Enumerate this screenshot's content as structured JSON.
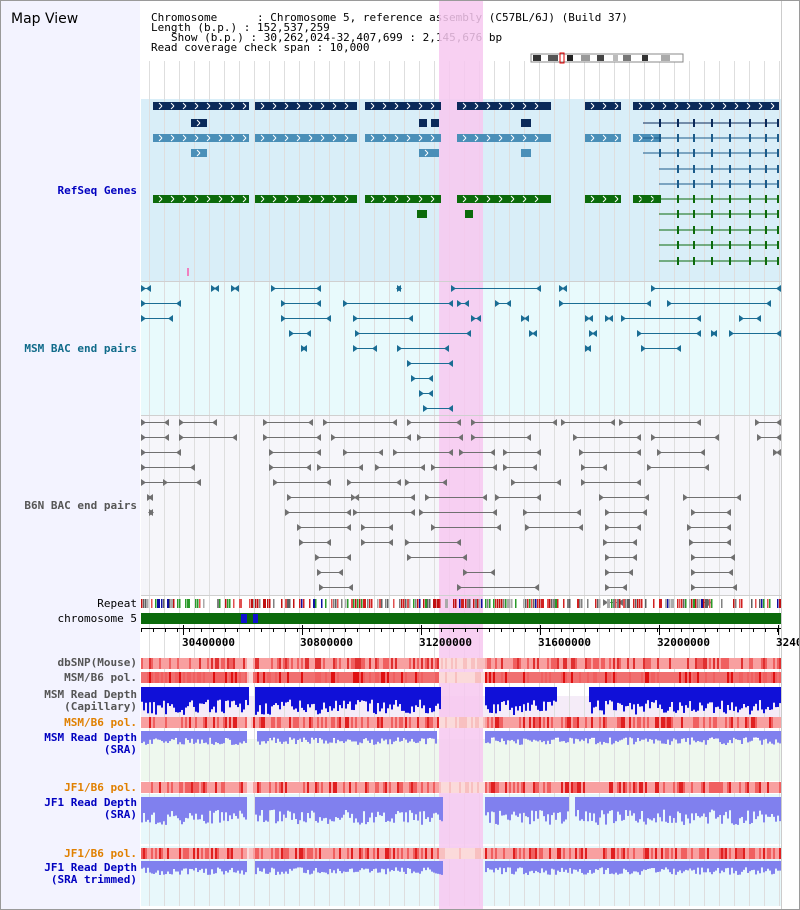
{
  "title": "Map View",
  "info": {
    "chromosome": "Chromosome      : Chromosome 5, reference assembly (C57BL/6J) (Build 37)",
    "length": "Length (b.p.) : 152,537,259",
    "show": "Show (b.p.) : 30,262,024-32,407,699 : 2,145,676 bp",
    "coverage": "Read coverage check span : 10,000"
  },
  "tracks": {
    "refseq": {
      "label": "RefSeq Genes",
      "color": "#0000c0"
    },
    "msm_bac": {
      "label": "MSM BAC end pairs",
      "color": "#106b8a"
    },
    "b6n_bac": {
      "label": "B6N BAC end pairs",
      "color": "#555555"
    },
    "repeat": {
      "label": "Repeat",
      "color": "#000000"
    },
    "chromosome": {
      "label": "chromosome 5",
      "color": "#000000"
    },
    "dbsnp": {
      "label": "dbSNP(Mouse)",
      "color": "#555555"
    },
    "msm_b6_pol": {
      "label": "MSM/B6 pol.",
      "color": "#555555"
    },
    "msm_read_cap": {
      "label": "MSM Read Depth",
      "sub": "(Capillary)",
      "color": "#555555"
    },
    "msm_b6_pol2": {
      "label": "MSM/B6 pol.",
      "color": "#e08000"
    },
    "msm_read_sra": {
      "label": "MSM Read Depth",
      "sub": "(SRA)",
      "color": "#0000c0"
    },
    "jf1_pol": {
      "label": "JF1/B6 pol.",
      "color": "#e08000"
    },
    "jf1_read": {
      "label": "JF1 Read Depth",
      "sub": "(SRA)",
      "color": "#0000c0"
    },
    "jf1_pol2": {
      "label": "JF1/B6 pol.",
      "color": "#e08000"
    },
    "jf1_read_trim": {
      "label": "JF1 Read Depth",
      "sub": "(SRA trimmed)",
      "color": "#0000c0"
    }
  },
  "axis": {
    "ticks": [
      "30400000",
      "30800000",
      "31200000",
      "31600000",
      "32000000",
      "3240"
    ]
  },
  "colors": {
    "refseq_dark": "#0b2a5a",
    "refseq_light": "#4a8fb8",
    "refseq_green": "#0b6b0b",
    "highlight": "#f7c8f0",
    "msm_line": "#1a6d94",
    "b6n_line": "#707070",
    "chrom_green": "#0b6a0b",
    "depth_blue": "#1010d8",
    "depth_light": "#8080ee"
  }
}
